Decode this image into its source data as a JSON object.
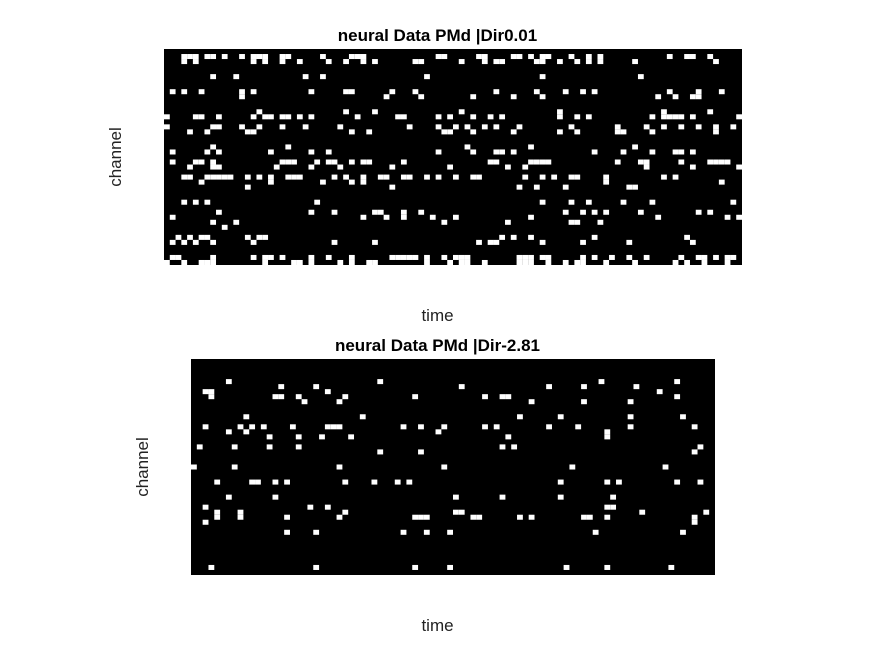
{
  "chart_data": [
    {
      "type": "heatmap",
      "title": "neural Data PMd |Dir0.01",
      "xlabel": "time",
      "ylabel": "channel",
      "colormap": [
        "#000000",
        "#ffffff"
      ],
      "seed": 17
    },
    {
      "type": "heatmap",
      "title": "neural Data PMd |Dir-2.81",
      "xlabel": "time",
      "ylabel": "channel",
      "colormap": [
        "#000000",
        "#ffffff"
      ],
      "seed": 91
    }
  ]
}
